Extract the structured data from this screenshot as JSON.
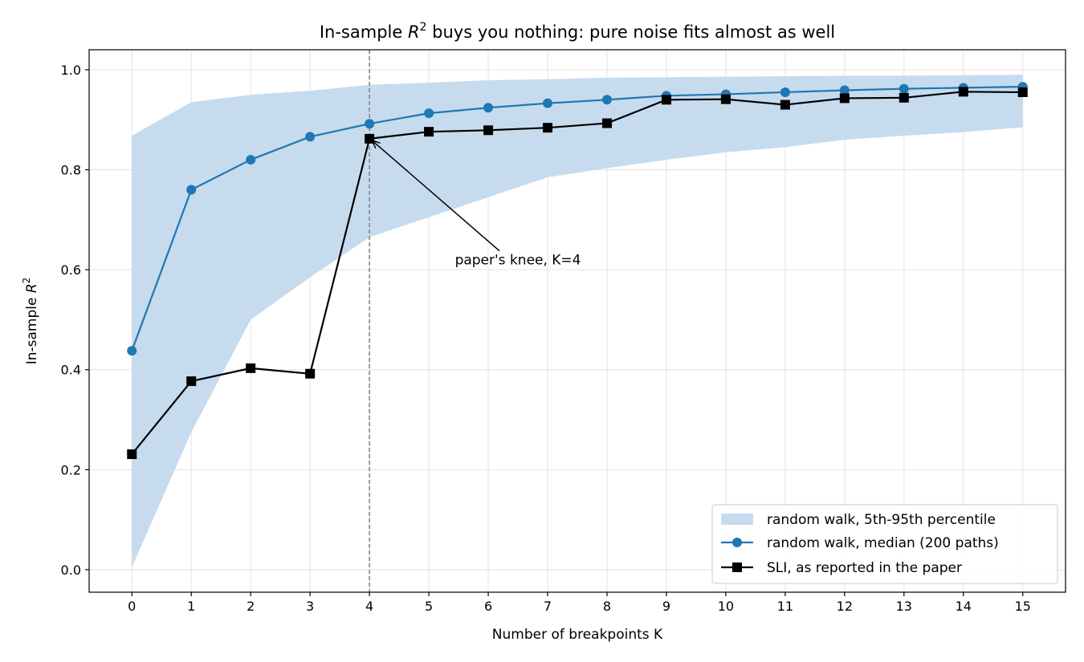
{
  "chart_data": {
    "type": "line",
    "title_pre": "In-sample ",
    "title_var": "R",
    "title_sup": "2",
    "title_post": " buys you nothing: pure noise fits almost as well",
    "xlabel": "Number of breakpoints K",
    "ylabel_pre": "In-sample ",
    "ylabel_var": "R",
    "ylabel_sup": "2",
    "x": [
      0,
      1,
      2,
      3,
      4,
      5,
      6,
      7,
      8,
      9,
      10,
      11,
      12,
      13,
      14,
      15
    ],
    "xlim": [
      -0.72,
      15.72
    ],
    "ylim": [
      -0.045,
      1.04
    ],
    "x_ticks": [
      "0",
      "1",
      "2",
      "3",
      "4",
      "5",
      "6",
      "7",
      "8",
      "9",
      "10",
      "11",
      "12",
      "13",
      "14",
      "15"
    ],
    "y_ticks": [
      "0.0",
      "0.2",
      "0.4",
      "0.6",
      "0.8",
      "1.0"
    ],
    "y_tick_values": [
      0.0,
      0.2,
      0.4,
      0.6,
      0.8,
      1.0
    ],
    "grid": true,
    "legend_position": "bottom-right",
    "band": {
      "name": "random walk, 5th-95th percentile",
      "color": "#c6dbee",
      "lower": [
        0.005,
        0.275,
        0.5,
        0.585,
        0.665,
        0.705,
        0.745,
        0.785,
        0.803,
        0.82,
        0.835,
        0.845,
        0.86,
        0.868,
        0.875,
        0.885
      ],
      "upper": [
        0.868,
        0.935,
        0.95,
        0.958,
        0.97,
        0.974,
        0.979,
        0.981,
        0.984,
        0.985,
        0.986,
        0.987,
        0.988,
        0.988,
        0.989,
        0.99
      ]
    },
    "series": [
      {
        "name": "random walk, median (200 paths)",
        "color": "#1f77b4",
        "marker": "circle",
        "values": [
          0.438,
          0.76,
          0.82,
          0.866,
          0.892,
          0.913,
          0.924,
          0.933,
          0.94,
          0.948,
          0.951,
          0.955,
          0.959,
          0.962,
          0.964,
          0.966
        ]
      },
      {
        "name": "SLI, as reported in the paper",
        "color": "#000000",
        "marker": "square",
        "values": [
          0.231,
          0.377,
          0.403,
          0.392,
          0.862,
          0.876,
          0.879,
          0.884,
          0.893,
          0.94,
          0.941,
          0.93,
          0.943,
          0.944,
          0.956,
          0.955
        ]
      }
    ],
    "vline": {
      "x": 4,
      "color": "#808080"
    },
    "annotation": {
      "text": "paper's knee, K=4",
      "point": [
        4,
        0.862
      ],
      "text_at": [
        6.5,
        0.62
      ]
    }
  }
}
